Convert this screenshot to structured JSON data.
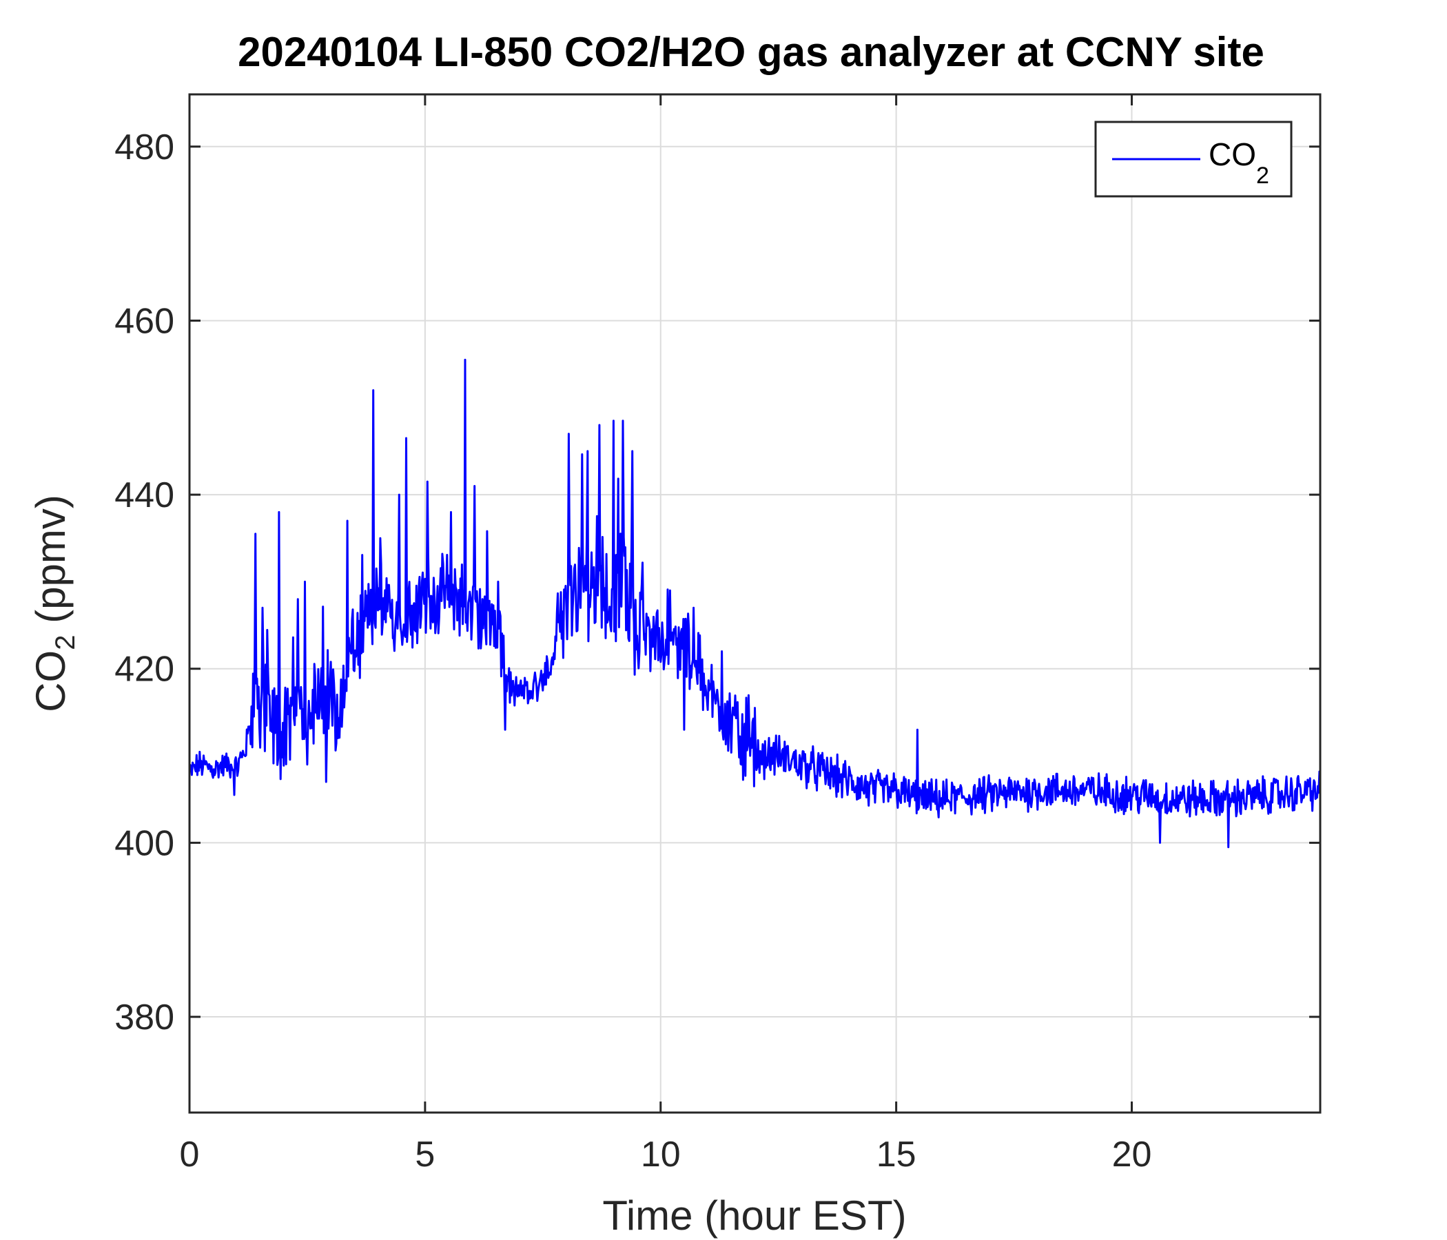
{
  "chart_data": {
    "type": "line",
    "title": "20240104 LI-850 CO2/H2O gas analyzer at CCNY site",
    "xlabel": "Time (hour EST)",
    "ylabel": {
      "base": "CO",
      "sub": "2",
      "rest": " (ppmv)"
    },
    "xlim": [
      0,
      24
    ],
    "ylim": [
      369,
      486
    ],
    "xticks": [
      0,
      5,
      10,
      15,
      20
    ],
    "yticks": [
      380,
      400,
      420,
      440,
      460,
      480
    ],
    "grid": true,
    "legend_position": "top-right",
    "series": [
      {
        "name": {
          "base": "CO",
          "sub": "2"
        },
        "color": "#0000ff",
        "anchors": {
          "x": [
            0,
            0.2,
            0.5,
            0.8,
            1.0,
            1.2,
            1.4,
            1.6,
            1.8,
            2.0,
            2.2,
            2.5,
            2.8,
            3.0,
            3.2,
            3.4,
            3.6,
            3.8,
            4.0,
            4.2,
            4.5,
            4.8,
            5.0,
            5.3,
            5.6,
            5.9,
            6.2,
            6.5,
            6.8,
            7.0,
            7.3,
            7.6,
            7.9,
            8.2,
            8.5,
            8.8,
            9.1,
            9.4,
            9.7,
            10.0,
            10.3,
            10.6,
            10.9,
            11.2,
            11.5,
            11.8,
            12.1,
            12.5,
            13.0,
            13.5,
            14.0,
            14.5,
            15.0,
            15.5,
            16.0,
            17.0,
            18.0,
            19.0,
            20.0,
            21.0,
            22.0,
            23.0,
            24.0
          ],
          "y": [
            408,
            409,
            408.5,
            409,
            408.5,
            411,
            418,
            415,
            413,
            412,
            414,
            416,
            415.5,
            416,
            415,
            422,
            423,
            426,
            428,
            426,
            427,
            427,
            428,
            428,
            429,
            427,
            426,
            424,
            418,
            417,
            418,
            419,
            425,
            429,
            430,
            428,
            430,
            427,
            423,
            423,
            423,
            422,
            419,
            416,
            414,
            411,
            410,
            410,
            409,
            408,
            407,
            406,
            406,
            405,
            405,
            405.5,
            406,
            406,
            405.5,
            405,
            405,
            405.5,
            406
          ]
        },
        "spikes": [
          {
            "x": 1.4,
            "y": 435.5
          },
          {
            "x": 1.55,
            "y": 427
          },
          {
            "x": 1.9,
            "y": 438
          },
          {
            "x": 2.3,
            "y": 428
          },
          {
            "x": 2.45,
            "y": 430
          },
          {
            "x": 3.35,
            "y": 437
          },
          {
            "x": 3.9,
            "y": 452
          },
          {
            "x": 4.05,
            "y": 435
          },
          {
            "x": 4.45,
            "y": 440
          },
          {
            "x": 4.6,
            "y": 446.5
          },
          {
            "x": 5.05,
            "y": 441.5
          },
          {
            "x": 5.55,
            "y": 438
          },
          {
            "x": 5.85,
            "y": 455.5
          },
          {
            "x": 6.05,
            "y": 441
          },
          {
            "x": 6.55,
            "y": 430
          },
          {
            "x": 8.05,
            "y": 447
          },
          {
            "x": 8.45,
            "y": 445
          },
          {
            "x": 8.7,
            "y": 448
          },
          {
            "x": 9.0,
            "y": 448.5
          },
          {
            "x": 9.2,
            "y": 448.5
          },
          {
            "x": 9.4,
            "y": 445
          },
          {
            "x": 10.2,
            "y": 429
          },
          {
            "x": 10.7,
            "y": 427
          },
          {
            "x": 11.3,
            "y": 422
          },
          {
            "x": 12.0,
            "y": 415.5
          },
          {
            "x": 15.45,
            "y": 413
          }
        ],
        "dips": [
          {
            "x": 0.95,
            "y": 405.5
          },
          {
            "x": 2.5,
            "y": 409
          },
          {
            "x": 2.9,
            "y": 407
          },
          {
            "x": 6.7,
            "y": 413
          },
          {
            "x": 10.5,
            "y": 413
          },
          {
            "x": 20.6,
            "y": 400
          },
          {
            "x": 22.05,
            "y": 399.5
          }
        ]
      }
    ]
  }
}
